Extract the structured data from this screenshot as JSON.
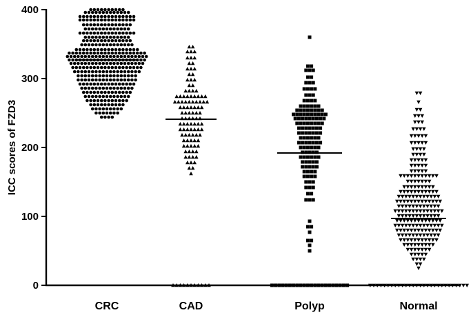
{
  "chart_data": {
    "type": "scatter",
    "subtype": "column-scatter-with-median",
    "title": "",
    "xlabel": "",
    "ylabel": "ICC scores of FZD3",
    "ylim": [
      0,
      400
    ],
    "yticks": [
      0,
      100,
      200,
      300,
      400
    ],
    "grid": false,
    "legend": "none",
    "categories": [
      "CRC",
      "CAD",
      "Polyp",
      "Normal"
    ],
    "series": [
      {
        "category": "CRC",
        "marker": "circle",
        "median": 327,
        "bands": [
          {
            "y": 400,
            "n": 10
          },
          {
            "y": 396,
            "n": 13
          },
          {
            "y": 390,
            "n": 16
          },
          {
            "y": 385,
            "n": 16
          },
          {
            "y": 378,
            "n": 14
          },
          {
            "y": 372,
            "n": 13
          },
          {
            "y": 366,
            "n": 16
          },
          {
            "y": 360,
            "n": 13
          },
          {
            "y": 355,
            "n": 14
          },
          {
            "y": 349,
            "n": 15
          },
          {
            "y": 342,
            "n": 18
          },
          {
            "y": 337,
            "n": 22
          },
          {
            "y": 332,
            "n": 23
          },
          {
            "y": 327,
            "n": 22
          },
          {
            "y": 322,
            "n": 21
          },
          {
            "y": 316,
            "n": 20
          },
          {
            "y": 310,
            "n": 19
          },
          {
            "y": 304,
            "n": 17
          },
          {
            "y": 298,
            "n": 17
          },
          {
            "y": 292,
            "n": 16
          },
          {
            "y": 286,
            "n": 15
          },
          {
            "y": 280,
            "n": 14
          },
          {
            "y": 274,
            "n": 13
          },
          {
            "y": 268,
            "n": 12
          },
          {
            "y": 262,
            "n": 10
          },
          {
            "y": 256,
            "n": 9
          },
          {
            "y": 250,
            "n": 7
          },
          {
            "y": 244,
            "n": 4
          }
        ]
      },
      {
        "category": "CAD",
        "marker": "triangle-up",
        "median": 241,
        "bands": [
          {
            "y": 346,
            "n": 2
          },
          {
            "y": 339,
            "n": 3
          },
          {
            "y": 330,
            "n": 3
          },
          {
            "y": 322,
            "n": 2
          },
          {
            "y": 314,
            "n": 3
          },
          {
            "y": 306,
            "n": 2
          },
          {
            "y": 298,
            "n": 3
          },
          {
            "y": 290,
            "n": 2
          },
          {
            "y": 282,
            "n": 4
          },
          {
            "y": 274,
            "n": 9
          },
          {
            "y": 266,
            "n": 10
          },
          {
            "y": 258,
            "n": 7
          },
          {
            "y": 250,
            "n": 6
          },
          {
            "y": 242,
            "n": 6
          },
          {
            "y": 234,
            "n": 7
          },
          {
            "y": 226,
            "n": 7
          },
          {
            "y": 218,
            "n": 6
          },
          {
            "y": 210,
            "n": 5
          },
          {
            "y": 202,
            "n": 5
          },
          {
            "y": 194,
            "n": 4
          },
          {
            "y": 186,
            "n": 4
          },
          {
            "y": 178,
            "n": 3
          },
          {
            "y": 170,
            "n": 2
          },
          {
            "y": 162,
            "n": 1
          },
          {
            "y": 0,
            "n": 11
          }
        ]
      },
      {
        "category": "Polyp",
        "marker": "square",
        "median": 192,
        "bands": [
          {
            "y": 360,
            "n": 1
          },
          {
            "y": 318,
            "n": 2
          },
          {
            "y": 312,
            "n": 3
          },
          {
            "y": 302,
            "n": 2
          },
          {
            "y": 294,
            "n": 3
          },
          {
            "y": 285,
            "n": 4
          },
          {
            "y": 276,
            "n": 3
          },
          {
            "y": 268,
            "n": 4
          },
          {
            "y": 260,
            "n": 6
          },
          {
            "y": 254,
            "n": 8
          },
          {
            "y": 248,
            "n": 10
          },
          {
            "y": 242,
            "n": 9
          },
          {
            "y": 235,
            "n": 8
          },
          {
            "y": 228,
            "n": 7
          },
          {
            "y": 221,
            "n": 7
          },
          {
            "y": 214,
            "n": 6
          },
          {
            "y": 207,
            "n": 7
          },
          {
            "y": 200,
            "n": 6
          },
          {
            "y": 193,
            "n": 5
          },
          {
            "y": 186,
            "n": 6
          },
          {
            "y": 179,
            "n": 5
          },
          {
            "y": 172,
            "n": 5
          },
          {
            "y": 165,
            "n": 4
          },
          {
            "y": 158,
            "n": 4
          },
          {
            "y": 150,
            "n": 3
          },
          {
            "y": 142,
            "n": 3
          },
          {
            "y": 133,
            "n": 2
          },
          {
            "y": 124,
            "n": 3
          },
          {
            "y": 93,
            "n": 1
          },
          {
            "y": 85,
            "n": 2
          },
          {
            "y": 77,
            "n": 1
          },
          {
            "y": 65,
            "n": 2
          },
          {
            "y": 58,
            "n": 1
          },
          {
            "y": 50,
            "n": 1
          },
          {
            "y": 0,
            "n": 22
          }
        ]
      },
      {
        "category": "Normal",
        "marker": "triangle-down",
        "median": 97,
        "bands": [
          {
            "y": 279,
            "n": 2
          },
          {
            "y": 266,
            "n": 1
          },
          {
            "y": 255,
            "n": 2
          },
          {
            "y": 246,
            "n": 3
          },
          {
            "y": 237,
            "n": 3
          },
          {
            "y": 227,
            "n": 4
          },
          {
            "y": 217,
            "n": 5
          },
          {
            "y": 207,
            "n": 5
          },
          {
            "y": 198,
            "n": 4
          },
          {
            "y": 190,
            "n": 4
          },
          {
            "y": 182,
            "n": 5
          },
          {
            "y": 174,
            "n": 5
          },
          {
            "y": 166,
            "n": 5
          },
          {
            "y": 159,
            "n": 11
          },
          {
            "y": 151,
            "n": 7
          },
          {
            "y": 143,
            "n": 9
          },
          {
            "y": 136,
            "n": 11
          },
          {
            "y": 129,
            "n": 12
          },
          {
            "y": 122,
            "n": 13
          },
          {
            "y": 115,
            "n": 12
          },
          {
            "y": 108,
            "n": 14
          },
          {
            "y": 101,
            "n": 12
          },
          {
            "y": 94,
            "n": 13
          },
          {
            "y": 87,
            "n": 14
          },
          {
            "y": 80,
            "n": 13
          },
          {
            "y": 73,
            "n": 12
          },
          {
            "y": 66,
            "n": 11
          },
          {
            "y": 59,
            "n": 9
          },
          {
            "y": 52,
            "n": 7
          },
          {
            "y": 45,
            "n": 5
          },
          {
            "y": 38,
            "n": 4
          },
          {
            "y": 31,
            "n": 2
          },
          {
            "y": 25,
            "n": 1
          },
          {
            "y": 0,
            "n": 28
          }
        ]
      }
    ]
  }
}
